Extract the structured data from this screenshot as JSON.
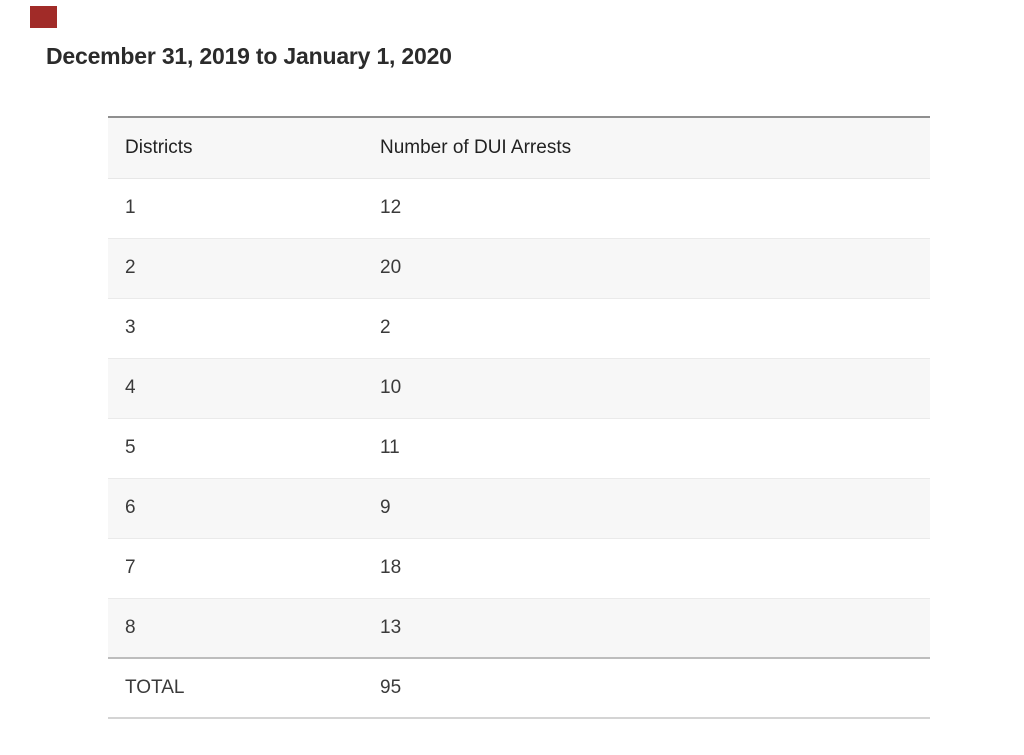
{
  "page": {
    "title": "December 31, 2019 to January 1, 2020"
  },
  "marker": {
    "name": "red-square-marker",
    "color": "#a12b28"
  },
  "table": {
    "columns": [
      {
        "label": "Districts"
      },
      {
        "label": "Number of DUI Arrests"
      }
    ],
    "rows": [
      {
        "district": "1",
        "arrests": "12"
      },
      {
        "district": "2",
        "arrests": "20"
      },
      {
        "district": "3",
        "arrests": "2"
      },
      {
        "district": "4",
        "arrests": "10"
      },
      {
        "district": "5",
        "arrests": "11"
      },
      {
        "district": "6",
        "arrests": "9"
      },
      {
        "district": "7",
        "arrests": "18"
      },
      {
        "district": "8",
        "arrests": "13"
      }
    ],
    "total": {
      "label": "TOTAL",
      "arrests": "95"
    }
  },
  "chart_data": {
    "type": "table",
    "title": "December 31, 2019 to January 1, 2020",
    "columns": [
      "Districts",
      "Number of DUI Arrests"
    ],
    "categories": [
      "1",
      "2",
      "3",
      "4",
      "5",
      "6",
      "7",
      "8"
    ],
    "values": [
      12,
      20,
      2,
      10,
      11,
      9,
      18,
      13
    ],
    "total_label": "TOTAL",
    "total_value": 95,
    "layout": {
      "striped_rows": true,
      "stripe_color": "#f7f7f7",
      "gridlines": "horizontal"
    }
  },
  "colors": {
    "marker_red": "#a12b28",
    "stripe_bg": "#f7f7f7",
    "table_top_border": "#8f8f8f",
    "row_divider": "#eaeaea",
    "total_top_border": "#bdbdbd",
    "table_bottom_border": "#d4d4d4",
    "title_text": "#2b2b2b",
    "header_text": "#222222",
    "cell_text": "#3a3a3a"
  }
}
